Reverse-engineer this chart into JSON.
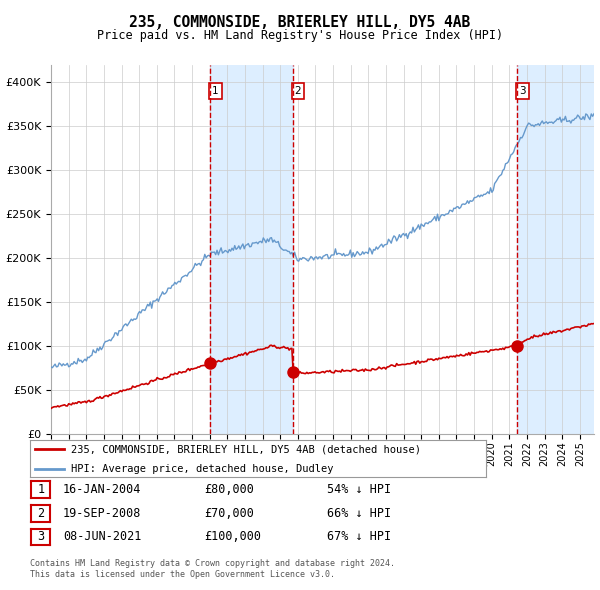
{
  "title": "235, COMMONSIDE, BRIERLEY HILL, DY5 4AB",
  "subtitle": "Price paid vs. HM Land Registry's House Price Index (HPI)",
  "legend_line1": "235, COMMONSIDE, BRIERLEY HILL, DY5 4AB (detached house)",
  "legend_line2": "HPI: Average price, detached house, Dudley",
  "footer1": "Contains HM Land Registry data © Crown copyright and database right 2024.",
  "footer2": "This data is licensed under the Open Government Licence v3.0.",
  "transactions": [
    {
      "num": 1,
      "date": "16-JAN-2004",
      "price": 80000,
      "pct": "54%",
      "x_year": 2004.04
    },
    {
      "num": 2,
      "date": "19-SEP-2008",
      "price": 70000,
      "pct": "66%",
      "x_year": 2008.72
    },
    {
      "num": 3,
      "date": "08-JUN-2021",
      "price": 100000,
      "pct": "67%",
      "x_year": 2021.44
    }
  ],
  "ylim": [
    0,
    420000
  ],
  "xlim_start": 1995.0,
  "xlim_end": 2025.8,
  "background_color": "#ffffff",
  "plot_bg_color": "#ffffff",
  "grid_color": "#cccccc",
  "hpi_color": "#6699cc",
  "price_color": "#cc0000",
  "shade_color": "#ddeeff",
  "vline_color": "#cc0000",
  "yticks": [
    0,
    50000,
    100000,
    150000,
    200000,
    250000,
    300000,
    350000,
    400000
  ],
  "ytick_labels": [
    "£0",
    "£50K",
    "£100K",
    "£150K",
    "£200K",
    "£250K",
    "£300K",
    "£350K",
    "£400K"
  ]
}
